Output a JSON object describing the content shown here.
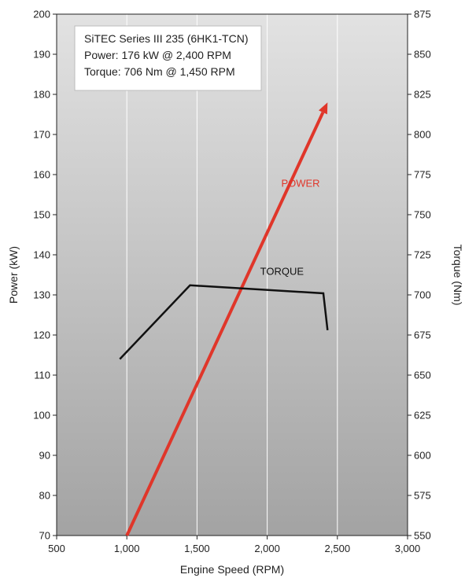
{
  "chart_data": {
    "type": "line",
    "info_box": {
      "lines": [
        "SiTEC Series III 235 (6HK1-TCN)",
        "Power: 176 kW @ 2,400 RPM",
        "Torque: 706 Nm @ 1,450 RPM"
      ]
    },
    "xlabel": "Engine Speed (RPM)",
    "ylabel_left": "Power (kW)",
    "ylabel_right": "Torque (Nm)",
    "xlim": [
      500,
      3000
    ],
    "ylim_left": [
      70,
      200
    ],
    "ylim_right": [
      550,
      875
    ],
    "x_ticks": [
      500,
      1000,
      1500,
      2000,
      2500,
      3000
    ],
    "x_tick_labels": [
      "500",
      "1,000",
      "1,500",
      "2,000",
      "2,500",
      "3,000"
    ],
    "y_left_ticks": [
      70,
      80,
      90,
      100,
      110,
      120,
      130,
      140,
      150,
      160,
      170,
      180,
      190,
      200
    ],
    "y_right_ticks": [
      550,
      575,
      600,
      625,
      650,
      675,
      700,
      725,
      750,
      775,
      800,
      825,
      850,
      875
    ],
    "background_gradient": [
      "#e2e2e2",
      "#a3a3a3"
    ],
    "series": [
      {
        "name": "POWER",
        "axis": "left",
        "color": "#e0362a",
        "arrow": true,
        "label_at": [
          2100,
          157
        ],
        "points": [
          [
            1000,
            70
          ],
          [
            2430,
            178
          ]
        ]
      },
      {
        "name": "TORQUE",
        "axis": "right",
        "color": "#111111",
        "arrow": false,
        "label_at": [
          1950,
          135
        ],
        "points": [
          [
            950,
            660
          ],
          [
            1450,
            706
          ],
          [
            2400,
            701
          ],
          [
            2430,
            678
          ]
        ]
      }
    ]
  }
}
